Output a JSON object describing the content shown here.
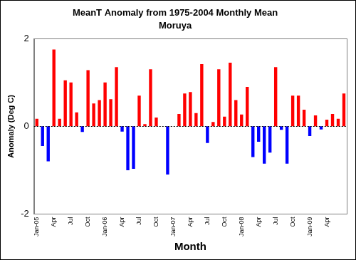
{
  "chart_data": {
    "type": "bar",
    "title": "MeanT Anomaly from 1975-2004 Monthly Mean",
    "subtitle": "Moruya",
    "x_label": "Month",
    "y_label": "Anomaly (Deg C)",
    "categories": [
      "Jan-05",
      null,
      null,
      "Apr",
      null,
      null,
      "Jul",
      null,
      null,
      "Oct",
      null,
      null,
      "Jan-06",
      null,
      null,
      "Apr",
      null,
      null,
      "Jul",
      null,
      null,
      "Oct",
      null,
      null,
      "Jan-07",
      null,
      null,
      "Apr",
      null,
      null,
      "Jul",
      null,
      null,
      "Oct",
      null,
      null,
      "Jan-08",
      null,
      null,
      "Apr",
      null,
      null,
      "Jul",
      null,
      null,
      "Oct",
      null,
      null,
      "Jan-09",
      null,
      null,
      "Apr",
      null,
      null,
      null
    ],
    "values": [
      0.17,
      -0.45,
      -0.8,
      1.75,
      0.17,
      1.05,
      1.0,
      0.32,
      -0.13,
      1.28,
      0.52,
      0.6,
      1.0,
      0.62,
      1.35,
      -0.12,
      -1.0,
      -0.97,
      0.7,
      0.05,
      1.3,
      0.2,
      0.0,
      -1.1,
      0.0,
      0.28,
      0.75,
      0.78,
      0.3,
      1.42,
      -0.38,
      0.1,
      1.3,
      0.22,
      1.45,
      0.6,
      0.27,
      0.9,
      -0.7,
      -0.35,
      -0.85,
      -0.6,
      1.35,
      -0.08,
      -0.85,
      0.7,
      0.7,
      0.38,
      -0.22,
      0.25,
      -0.07,
      0.15,
      0.28,
      0.17,
      0.75
    ],
    "colors": [
      "#ff0000",
      "#0000ff",
      "#0000ff",
      "#ff0000",
      "#ff0000",
      "#ff0000",
      "#ff0000",
      "#ff0000",
      "#0000ff",
      "#ff0000",
      "#ff0000",
      "#ff0000",
      "#ff0000",
      "#ff0000",
      "#ff0000",
      "#0000ff",
      "#0000ff",
      "#0000ff",
      "#ff0000",
      "#ff0000",
      "#ff0000",
      "#ff0000",
      "#ff0000",
      "#0000ff",
      "#ff0000",
      "#ff0000",
      "#ff0000",
      "#ff0000",
      "#ff0000",
      "#ff0000",
      "#0000ff",
      "#ff0000",
      "#ff0000",
      "#ff0000",
      "#ff0000",
      "#ff0000",
      "#ff0000",
      "#ff0000",
      "#0000ff",
      "#0000ff",
      "#0000ff",
      "#0000ff",
      "#ff0000",
      "#0000ff",
      "#0000ff",
      "#ff0000",
      "#ff0000",
      "#ff0000",
      "#0000ff",
      "#ff0000",
      "#0000ff",
      "#ff0000",
      "#ff0000",
      "#ff0000",
      "#ff0000"
    ],
    "ylim": [
      -2,
      2
    ],
    "yticks": [
      -2,
      0,
      2
    ],
    "grid": false
  }
}
